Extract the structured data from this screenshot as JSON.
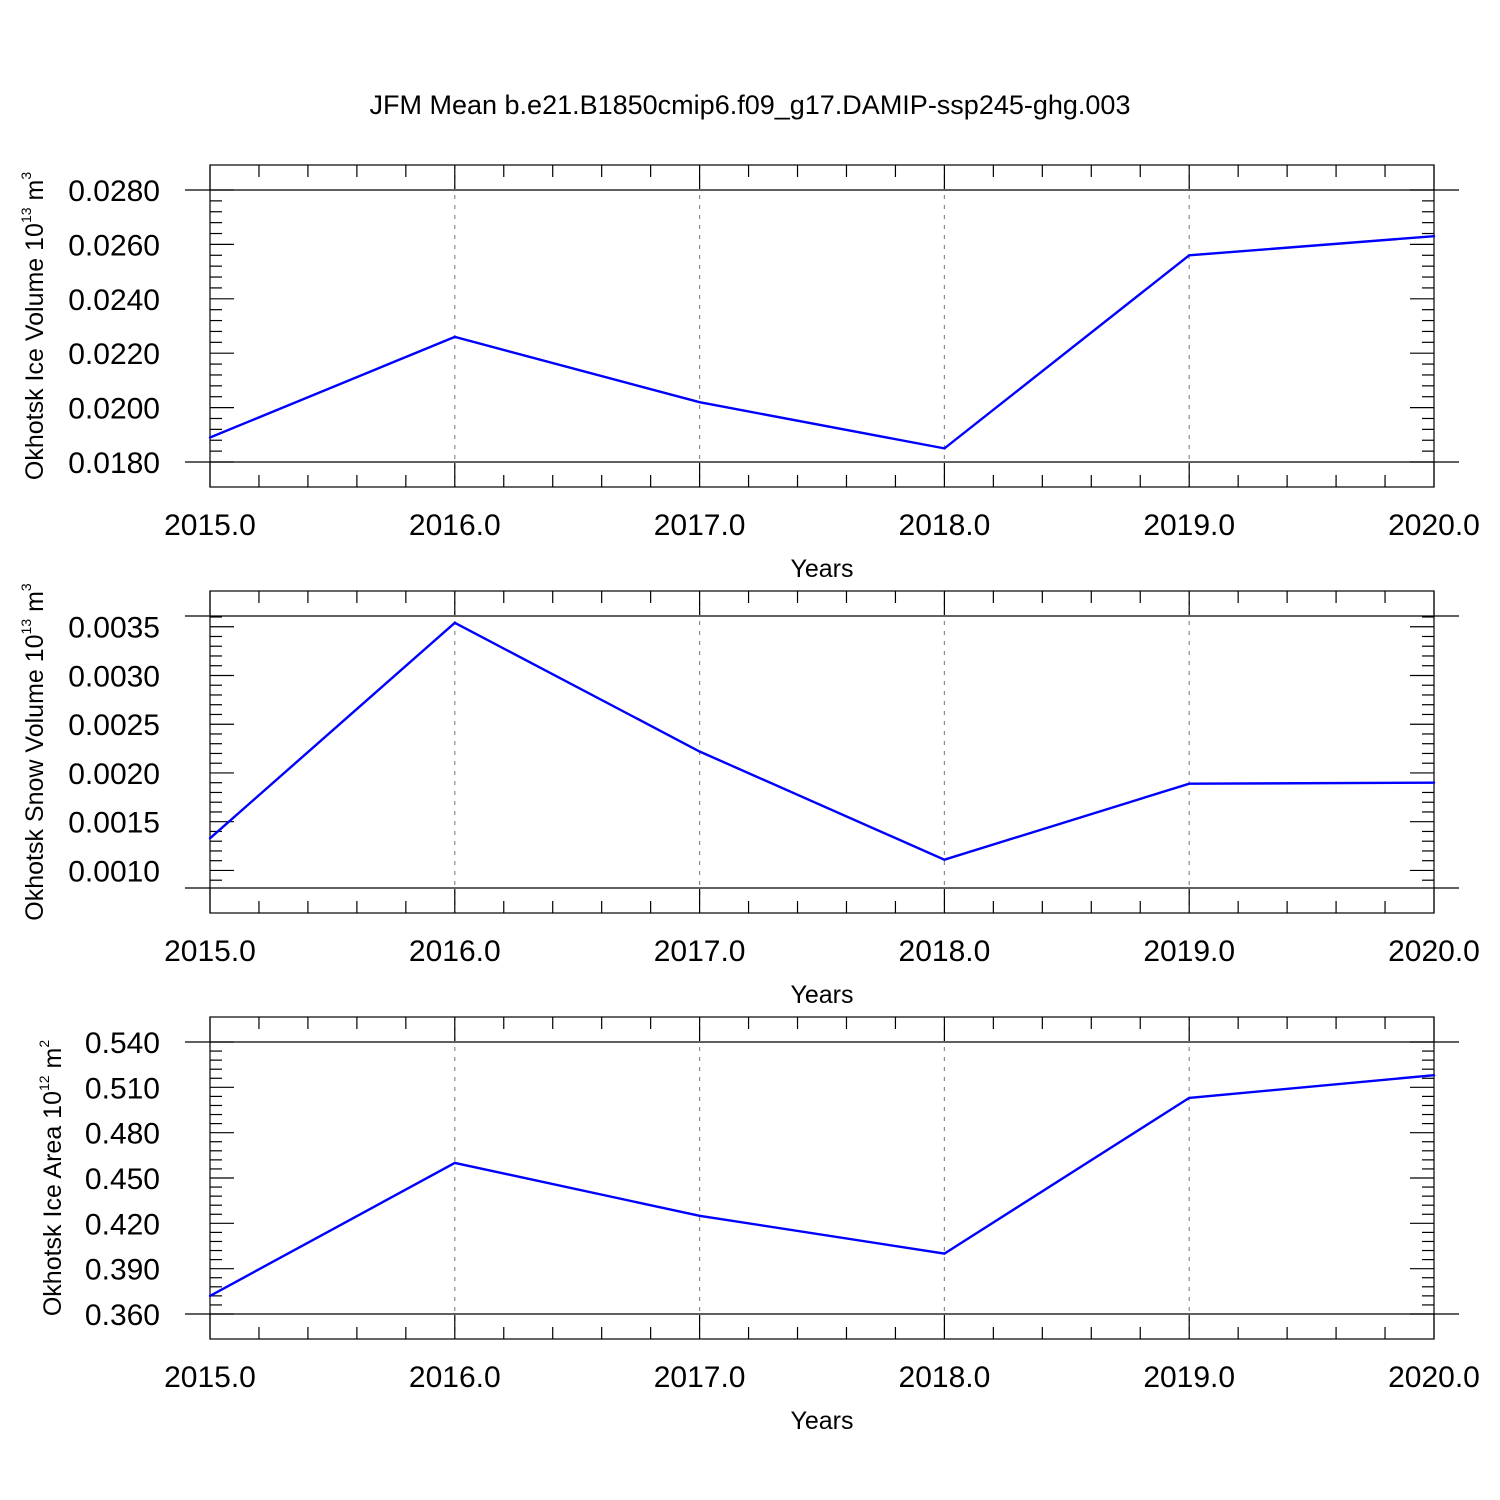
{
  "title": "JFM Mean b.e21.B1850cmip6.f09_g17.DAMIP-ssp245-ghg.003",
  "colors": {
    "series": "#0000ff",
    "axis": "#000000",
    "grid": "#8c8c8c"
  },
  "chart_data": [
    {
      "type": "line",
      "ylabel_main": "Okhotsk Ice Volume 10",
      "ylabel_exp": "13",
      "ylabel_unit": " m",
      "ylabel_unit_exp": "3",
      "xlabel": "Years",
      "xlim": [
        2015,
        2020
      ],
      "xticks": [
        "2015.0",
        "2016.0",
        "2017.0",
        "2018.0",
        "2019.0",
        "2020.0"
      ],
      "ylim": [
        0.018,
        0.028
      ],
      "yticks": [
        "0.0180",
        "0.0200",
        "0.0220",
        "0.0240",
        "0.0260",
        "0.0280"
      ],
      "x": [
        2015,
        2016,
        2017,
        2018,
        2019,
        2020
      ],
      "values": [
        0.0189,
        0.0226,
        0.0202,
        0.0185,
        0.0256,
        0.0263
      ]
    },
    {
      "type": "line",
      "ylabel_main": "Okhotsk Snow Volume 10",
      "ylabel_exp": "13",
      "ylabel_unit": " m",
      "ylabel_unit_exp": "3",
      "xlabel": "Years",
      "xlim": [
        2015,
        2020
      ],
      "xticks": [
        "2015.0",
        "2016.0",
        "2017.0",
        "2018.0",
        "2019.0",
        "2020.0"
      ],
      "ylim": [
        0.00082,
        0.00361
      ],
      "yticks": [
        "0.0010",
        "0.0015",
        "0.0020",
        "0.0025",
        "0.0030",
        "0.0035"
      ],
      "x": [
        2015,
        2016,
        2017,
        2018,
        2019,
        2020
      ],
      "values": [
        0.00133,
        0.00354,
        0.00222,
        0.00111,
        0.00189,
        0.0019
      ]
    },
    {
      "type": "line",
      "ylabel_main": "Okhotsk Ice Area 10",
      "ylabel_exp": "12",
      "ylabel_unit": " m",
      "ylabel_unit_exp": "2",
      "xlabel": "Years",
      "xlim": [
        2015,
        2020
      ],
      "xticks": [
        "2015.0",
        "2016.0",
        "2017.0",
        "2018.0",
        "2019.0",
        "2020.0"
      ],
      "ylim": [
        0.36,
        0.54
      ],
      "yticks": [
        "0.360",
        "0.390",
        "0.420",
        "0.450",
        "0.480",
        "0.510",
        "0.540"
      ],
      "x": [
        2015,
        2016,
        2017,
        2018,
        2019,
        2020
      ],
      "values": [
        0.372,
        0.46,
        0.425,
        0.4,
        0.503,
        0.518
      ]
    }
  ]
}
